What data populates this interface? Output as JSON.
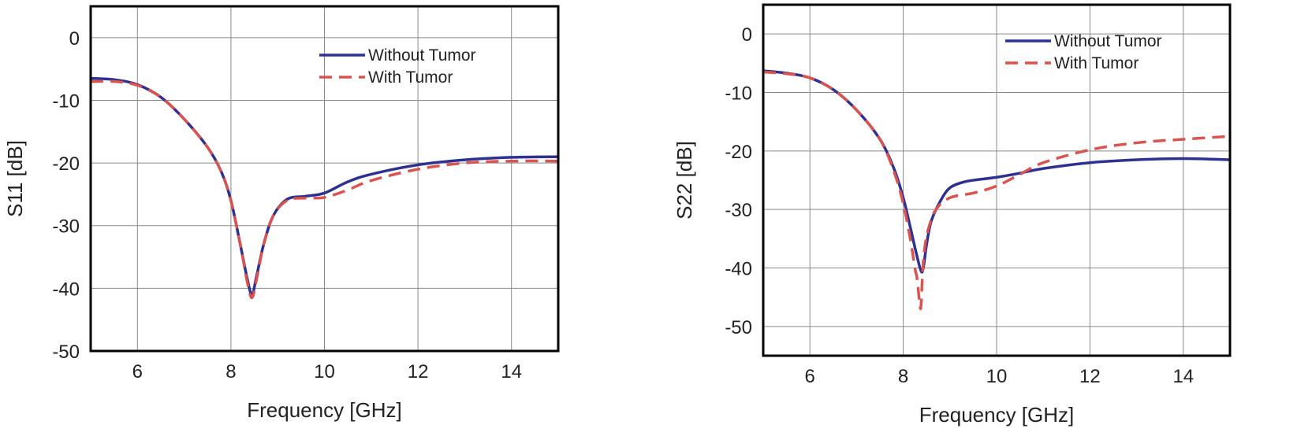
{
  "colors": {
    "without_tumor": "#2e3192",
    "with_tumor": "#d9534f",
    "grid": "#8a8a8a",
    "frame": "#000000"
  },
  "chart_data": [
    {
      "type": "line",
      "xlabel": "Frequency [GHz]",
      "ylabel": "S11 [dB]",
      "xlim": [
        5,
        15
      ],
      "ylim": [
        -50,
        5
      ],
      "xticks": [
        6,
        8,
        10,
        12,
        14
      ],
      "xtick_labels": [
        "6",
        "8",
        "10",
        "12",
        "14"
      ],
      "yticks": [
        0,
        -10,
        -20,
        -30,
        -40,
        -50
      ],
      "ytick_labels": [
        "0",
        "-10",
        "-20",
        "-30",
        "-40",
        "-50"
      ],
      "grid": true,
      "legend_position": "top-right",
      "series": [
        {
          "name": "Without Tumor",
          "style": "solid",
          "x": [
            5,
            5.5,
            6,
            6.5,
            7,
            7.5,
            7.8,
            8.0,
            8.2,
            8.35,
            8.45,
            8.55,
            8.7,
            8.9,
            9.2,
            9.6,
            10.0,
            10.5,
            11,
            12,
            13,
            14,
            15
          ],
          "y": [
            -6.5,
            -6.7,
            -7.5,
            -9.5,
            -13,
            -17.5,
            -21.5,
            -26,
            -33,
            -38.5,
            -41,
            -38,
            -33,
            -28.5,
            -25.8,
            -25.3,
            -24.8,
            -23,
            -21.8,
            -20.3,
            -19.5,
            -19.1,
            -19
          ]
        },
        {
          "name": "With Tumor",
          "style": "dashed",
          "x": [
            5,
            5.5,
            6,
            6.5,
            7,
            7.5,
            7.8,
            8.0,
            8.2,
            8.35,
            8.45,
            8.55,
            8.7,
            8.9,
            9.2,
            9.6,
            10.0,
            10.5,
            11,
            12,
            13,
            14,
            15
          ],
          "y": [
            -7,
            -7,
            -7.6,
            -9.5,
            -13,
            -17.5,
            -21.5,
            -26,
            -33,
            -39,
            -41.5,
            -38.5,
            -33,
            -28.5,
            -26,
            -25.6,
            -25.5,
            -24.3,
            -22.8,
            -21,
            -20,
            -19.7,
            -19.7
          ]
        }
      ]
    },
    {
      "type": "line",
      "xlabel": "Frequency [GHz]",
      "ylabel": "S22 [dB]",
      "xlim": [
        5,
        15
      ],
      "ylim": [
        -55,
        5
      ],
      "xticks": [
        6,
        8,
        10,
        12,
        14
      ],
      "xtick_labels": [
        "6",
        "8",
        "10",
        "12",
        "14"
      ],
      "yticks": [
        0,
        -10,
        -20,
        -30,
        -40,
        -50
      ],
      "ytick_labels": [
        "0",
        "-10",
        "-20",
        "-30",
        "-40",
        "-50"
      ],
      "grid": true,
      "legend_position": "top-right",
      "series": [
        {
          "name": "Without Tumor",
          "style": "solid",
          "x": [
            5,
            5.5,
            6,
            6.5,
            7,
            7.5,
            7.8,
            8.0,
            8.15,
            8.28,
            8.38,
            8.43,
            8.5,
            8.6,
            8.8,
            9.0,
            9.3,
            9.6,
            10,
            10.5,
            11,
            12,
            13,
            14,
            15
          ],
          "y": [
            -6.3,
            -6.7,
            -7.5,
            -9.5,
            -13,
            -18,
            -23,
            -28,
            -33,
            -37.5,
            -40.5,
            -40,
            -36,
            -32,
            -28.5,
            -26.3,
            -25.3,
            -24.9,
            -24.5,
            -23.8,
            -23,
            -22,
            -21.5,
            -21.3,
            -21.5
          ]
        },
        {
          "name": "With Tumor",
          "style": "dashed",
          "x": [
            5,
            5.5,
            6,
            6.5,
            7,
            7.5,
            7.8,
            8.0,
            8.15,
            8.25,
            8.3,
            8.35,
            8.38,
            8.42,
            8.47,
            8.55,
            8.7,
            9.0,
            9.5,
            10,
            10.5,
            11,
            12,
            13,
            14,
            15
          ],
          "y": [
            -6.5,
            -6.8,
            -7.5,
            -9.5,
            -13,
            -18,
            -23.5,
            -29,
            -35,
            -40,
            -42,
            -46,
            -46.5,
            -40,
            -36,
            -33,
            -30,
            -28,
            -27.2,
            -26,
            -24,
            -22,
            -19.8,
            -18.6,
            -18,
            -17.5
          ]
        }
      ]
    }
  ]
}
